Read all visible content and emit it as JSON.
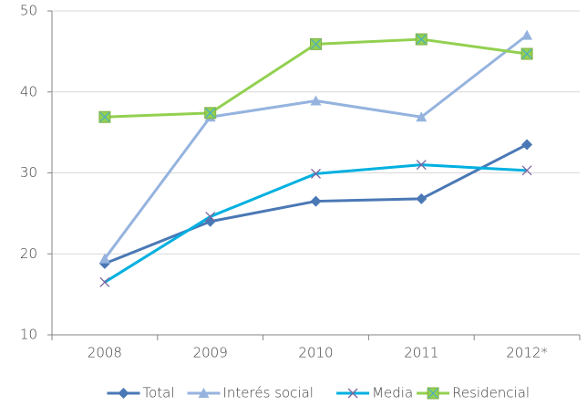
{
  "chart_data": {
    "type": "line",
    "categories": [
      "2008",
      "2009",
      "2010",
      "2011",
      "2012*"
    ],
    "series": [
      {
        "name": "Total",
        "color": "#4a78b5",
        "marker": "diamond",
        "values": [
          18.8,
          24.0,
          26.5,
          26.8,
          33.5
        ]
      },
      {
        "name": "Interés social",
        "color": "#95b3de",
        "marker": "triangle",
        "values": [
          19.4,
          36.9,
          38.9,
          36.9,
          47.0
        ]
      },
      {
        "name": "Media",
        "color": "#00b0e0",
        "marker": "x",
        "values": [
          16.5,
          24.6,
          29.9,
          31.0,
          30.3
        ]
      },
      {
        "name": "Residencial",
        "color": "#92d050",
        "marker": "square-x",
        "values": [
          36.9,
          37.4,
          45.9,
          46.5,
          44.7
        ]
      }
    ],
    "ylim": [
      10,
      50
    ],
    "yticks": [
      10,
      20,
      30,
      40,
      50
    ],
    "grid": true,
    "legend": "bottom"
  }
}
